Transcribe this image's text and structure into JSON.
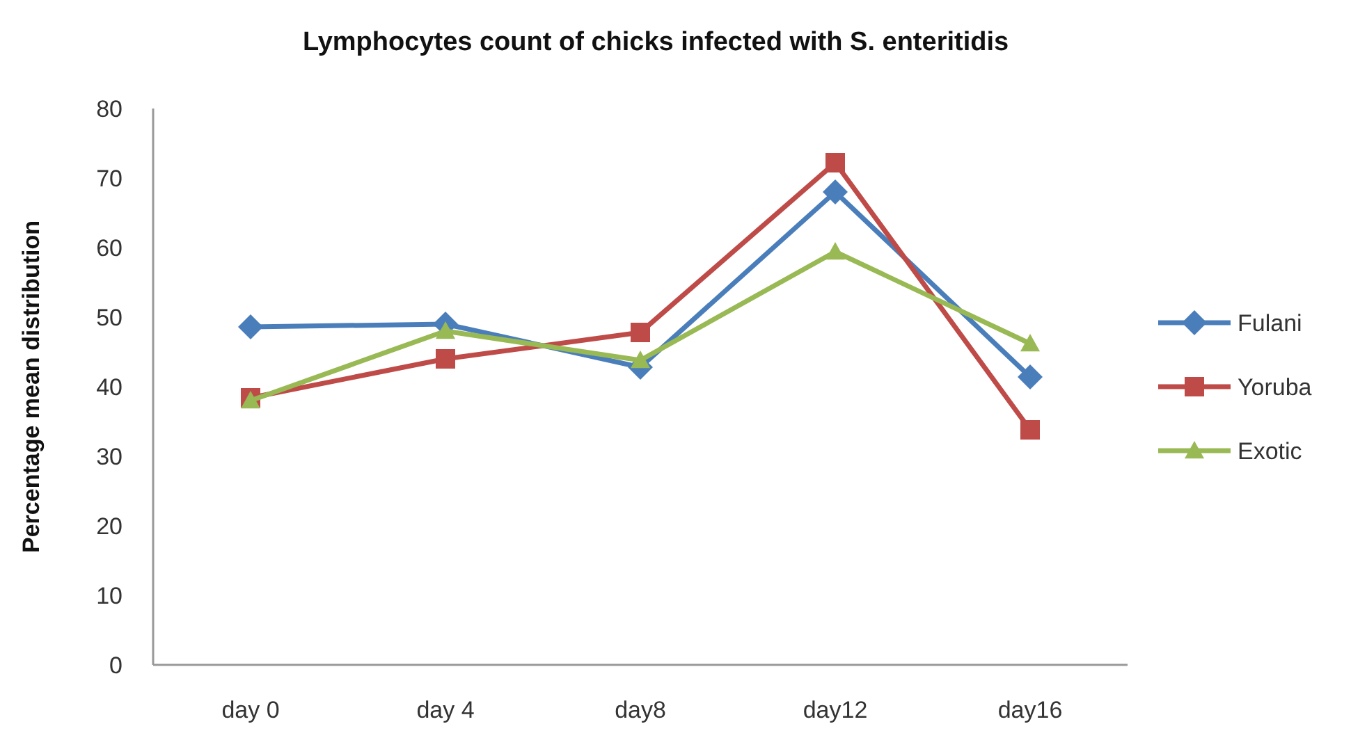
{
  "chart_data": {
    "type": "line",
    "title": "Lymphocytes count of chicks infected with S. enteritidis",
    "ylabel": "Percentage mean distribution",
    "categories": [
      "day 0",
      "day 4",
      "day8",
      "day12",
      "day16"
    ],
    "ylim": [
      0,
      80
    ],
    "yticks": [
      0,
      10,
      20,
      30,
      40,
      50,
      60,
      70,
      80
    ],
    "grid": false,
    "legend": "right",
    "line_style": "solid",
    "series": [
      {
        "name": "Fulani",
        "color": "#4a7ebb",
        "marker": "diamond",
        "values": [
          48.6,
          49,
          42.8,
          68,
          41.4
        ]
      },
      {
        "name": "Yoruba",
        "color": "#be4b48",
        "marker": "square",
        "values": [
          38.4,
          44,
          47.8,
          72.2,
          33.8
        ]
      },
      {
        "name": "Exotic",
        "color": "#98b954",
        "marker": "triangle",
        "values": [
          38,
          48,
          43.8,
          59.4,
          46.2
        ]
      }
    ]
  }
}
